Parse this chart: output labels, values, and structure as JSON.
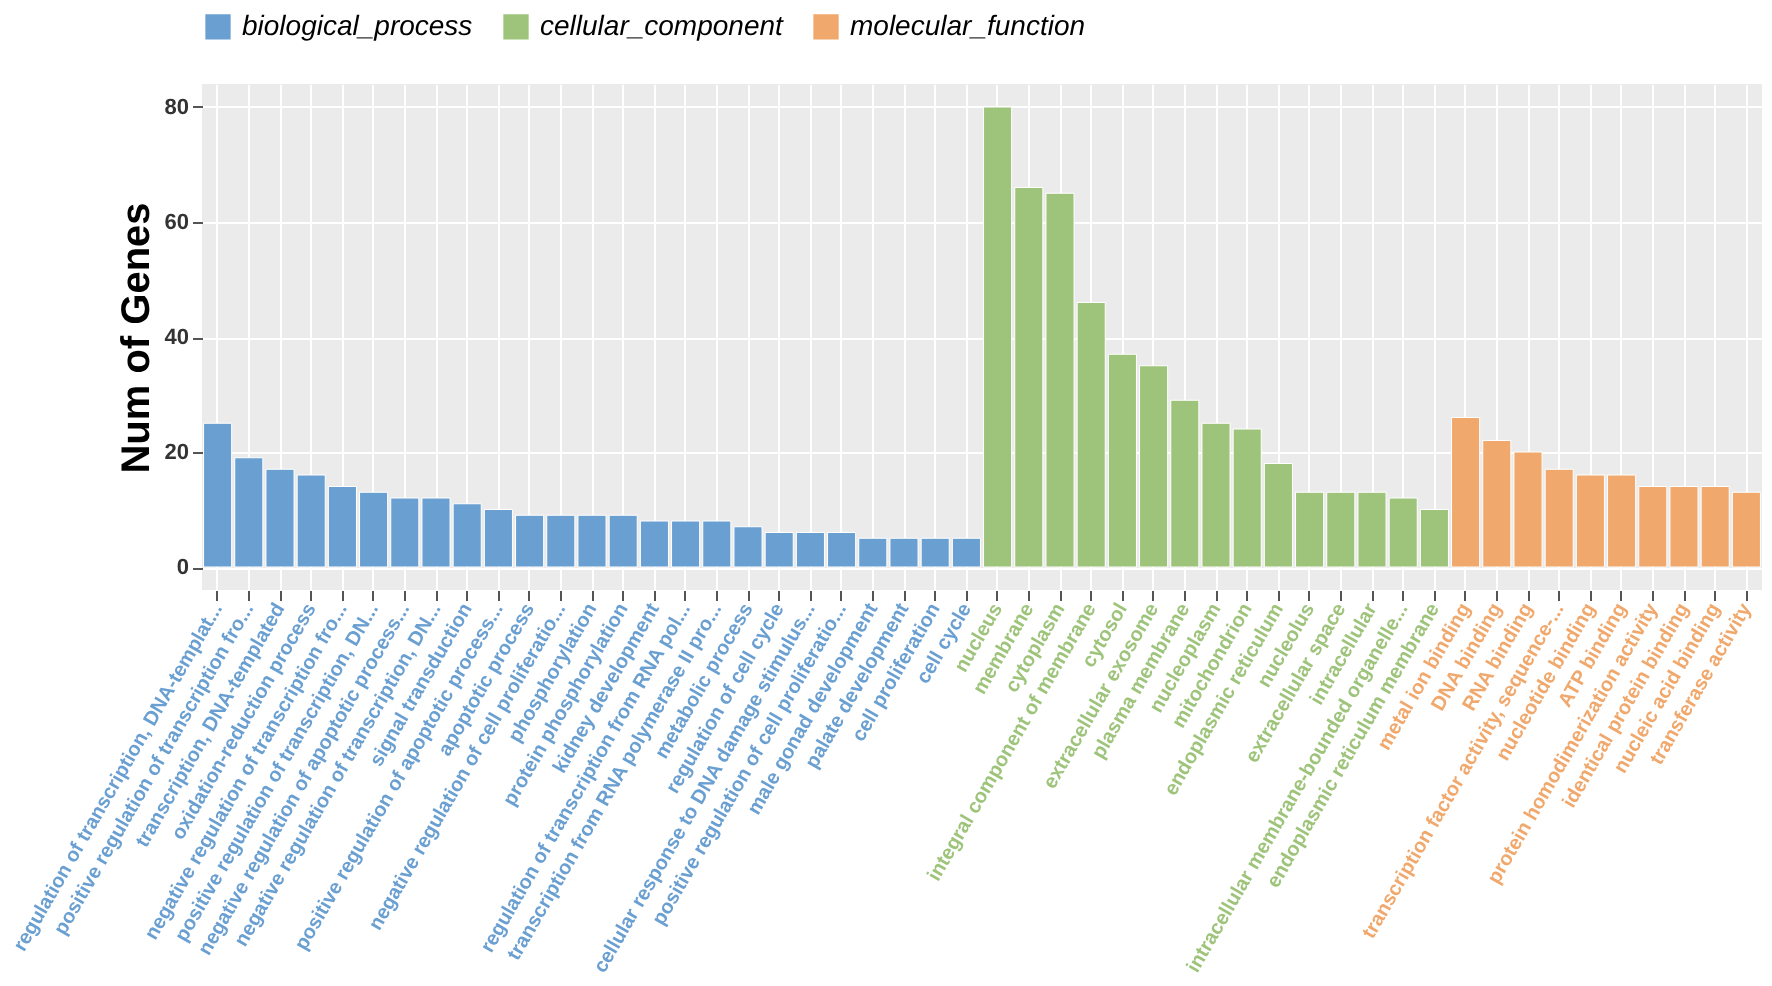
{
  "chart_data": {
    "type": "bar",
    "ylabel": "Num of Genes",
    "categories": [
      "regulation of transcription, DNA-templat...",
      "positive regulation of transcription fro...",
      "transcription, DNA-templated",
      "oxidation-reduction process",
      "negative regulation of transcription fro...",
      "positive regulation of transcription, DN...",
      "negative regulation of apoptotic process...",
      "negative regulation of transcription, DN...",
      "signal transduction",
      "positive regulation of apoptotic process...",
      "apoptotic process",
      "negative regulation of cell proliferatio...",
      "phosphorylation",
      "protein phosphorylation",
      "kidney development",
      "regulation of transcription from RNA pol...",
      "transcription from RNA polymerase II pro...",
      "metabolic process",
      "regulation of cell cycle",
      "cellular response to DNA damage stimulus...",
      "positive regulation of cell proliferatio...",
      "male gonad development",
      "palate development",
      "cell proliferation",
      "cell cycle",
      "nucleus",
      "membrane",
      "cytoplasm",
      "integral component of membrane",
      "cytosol",
      "extracellular exosome",
      "plasma membrane",
      "nucleoplasm",
      "mitochondrion",
      "endoplasmic reticulum",
      "nucleolus",
      "extracellular space",
      "intracellular",
      "intracellular membrane-bounded organelle...",
      "endoplasmic reticulum membrane",
      "metal ion binding",
      "DNA binding",
      "RNA binding",
      "transcription factor activity, sequence-...",
      "nucleotide binding",
      "ATP binding",
      "protein homodimerization activity",
      "identical protein binding",
      "nucleic acid binding",
      "transferase activity"
    ],
    "series": [
      {
        "name": "biological_process",
        "color": "#6a9fd1",
        "values": [
          25,
          19,
          17,
          16,
          14,
          13,
          12,
          12,
          11,
          10,
          9,
          9,
          9,
          9,
          8,
          8,
          8,
          7,
          6,
          6,
          6,
          5,
          5,
          5,
          5,
          null,
          null,
          null,
          null,
          null,
          null,
          null,
          null,
          null,
          null,
          null,
          null,
          null,
          null,
          null,
          null,
          null,
          null,
          null,
          null,
          null,
          null,
          null,
          null,
          null
        ]
      },
      {
        "name": "cellular_component",
        "color": "#9dc47a",
        "values": [
          null,
          null,
          null,
          null,
          null,
          null,
          null,
          null,
          null,
          null,
          null,
          null,
          null,
          null,
          null,
          null,
          null,
          null,
          null,
          null,
          null,
          null,
          null,
          null,
          null,
          80,
          66,
          65,
          46,
          37,
          35,
          29,
          25,
          24,
          18,
          13,
          13,
          13,
          12,
          10,
          null,
          null,
          null,
          null,
          null,
          null,
          null,
          null,
          null,
          null
        ]
      },
      {
        "name": "molecular_function",
        "color": "#f0a86c",
        "values": [
          null,
          null,
          null,
          null,
          null,
          null,
          null,
          null,
          null,
          null,
          null,
          null,
          null,
          null,
          null,
          null,
          null,
          null,
          null,
          null,
          null,
          null,
          null,
          null,
          null,
          null,
          null,
          null,
          null,
          null,
          null,
          null,
          null,
          null,
          null,
          null,
          null,
          null,
          null,
          null,
          26,
          22,
          20,
          17,
          16,
          16,
          14,
          14,
          14,
          13
        ]
      }
    ],
    "ylim": [
      -4,
      84
    ],
    "yticks": [
      0,
      20,
      40,
      60,
      80
    ],
    "grid": true,
    "legend": "top"
  }
}
